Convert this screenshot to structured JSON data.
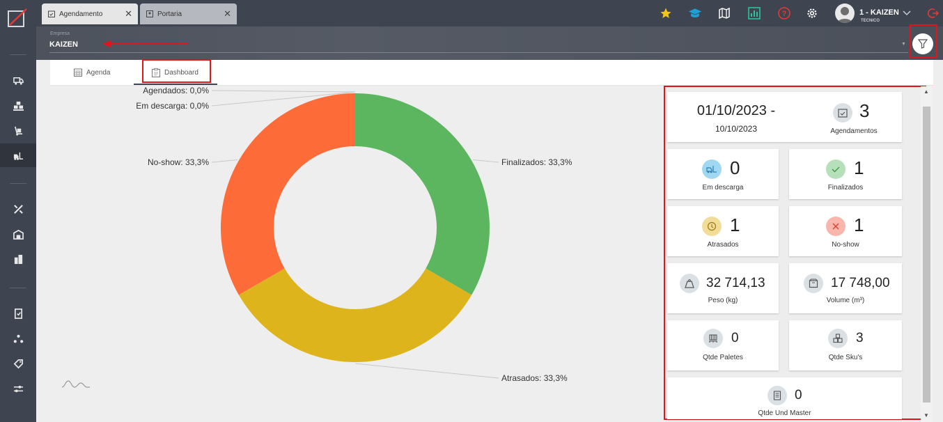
{
  "tabs": [
    {
      "label": "Agendamento"
    },
    {
      "label": "Portaria"
    }
  ],
  "user": {
    "name": "1 - KAIZEN",
    "role": "TECNICO"
  },
  "empresa": {
    "label": "Empresa",
    "value": "KAIZEN"
  },
  "subtabs": {
    "agenda": "Agenda",
    "dashboard": "Dashboard"
  },
  "chart_data": {
    "type": "pie",
    "donut": true,
    "categories": [
      "Agendados",
      "Em descarga",
      "Finalizados",
      "Atrasados",
      "No-show"
    ],
    "values": [
      0.0,
      0.0,
      33.3,
      33.3,
      33.3
    ],
    "labels": [
      "Agendados: 0,0%",
      "Em descarga: 0,0%",
      "Finalizados: 33,3%",
      "Atrasados: 33,3%",
      "No-show: 33,3%"
    ],
    "colors": [
      "#5cb55f",
      "#5cb55f",
      "#5cb55f",
      "#ddb41c",
      "#fd6b39"
    ],
    "title": "",
    "legend": "none"
  },
  "kpis": {
    "date_from": "01/10/2023 -",
    "date_to": "10/10/2023",
    "agendamentos": {
      "value": "3",
      "label": "Agendamentos"
    },
    "em_descarga": {
      "value": "0",
      "label": "Em descarga",
      "color": "#9fd8f0"
    },
    "finalizados": {
      "value": "1",
      "label": "Finalizados",
      "color": "#b6e0b9"
    },
    "atrasados": {
      "value": "1",
      "label": "Atrasados",
      "color": "#f1dd98"
    },
    "no_show": {
      "value": "1",
      "label": "No-show",
      "color": "#f8b6ad"
    },
    "peso": {
      "value": "32 714,13",
      "label": "Peso (kg)"
    },
    "volume": {
      "value": "17 748,00",
      "label": "Volume (m³)"
    },
    "paletes": {
      "value": "0",
      "label": "Qtde Paletes"
    },
    "skus": {
      "value": "3",
      "label": "Qtde Sku's"
    },
    "und_master": {
      "value": "0",
      "label": "Qtde Und Master"
    }
  }
}
